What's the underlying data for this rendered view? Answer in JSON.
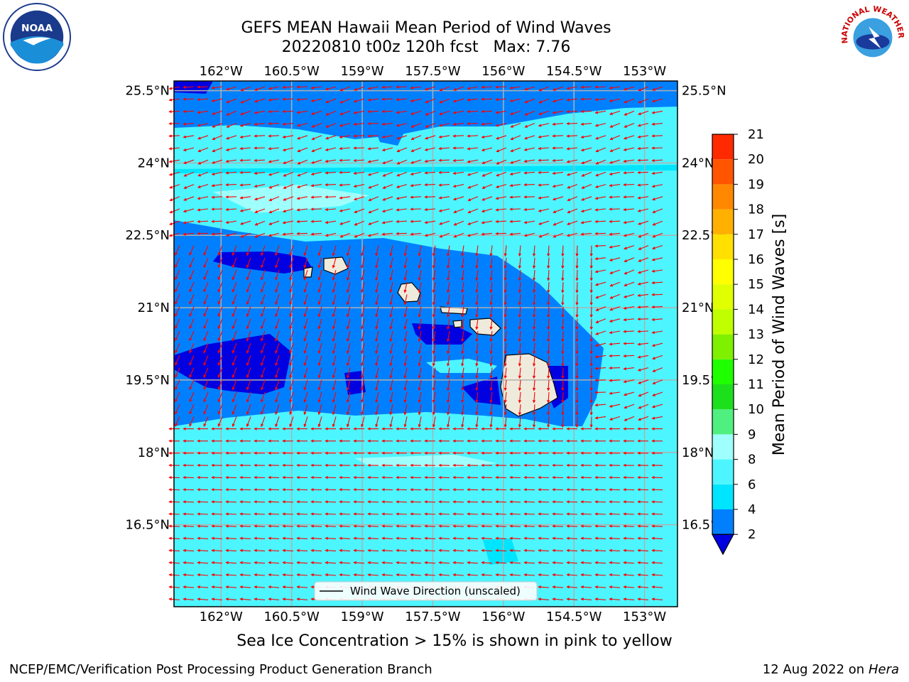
{
  "header": {
    "title_line1": "GEFS MEAN Hawaii Mean Period of Wind Waves",
    "title_line2": "20220810 t00z 120h fcst   Max: 7.76"
  },
  "logos": {
    "left": {
      "icon": "noaa-logo",
      "text": "NOAA"
    },
    "right": {
      "icon": "nws-logo",
      "text": "NATIONAL WEATHER SERVICE"
    }
  },
  "map": {
    "lon_labels": [
      "162°W",
      "160.5°W",
      "159°W",
      "157.5°W",
      "156°W",
      "154.5°W",
      "153°W"
    ],
    "lat_labels_left": [
      "25.5°N",
      "24°N",
      "22.5°N",
      "21°N",
      "19.5°N",
      "18°N",
      "16.5°N"
    ],
    "lat_labels_right": [
      "25.5°N",
      "24°N",
      "22.5°N",
      "21°N",
      "19.5°N",
      "18°N",
      "16.5°N"
    ],
    "extent": {
      "lon_min": -163.0,
      "lon_max": -152.3,
      "lat_min": 14.8,
      "lat_max": 25.7
    },
    "legend_label": "Wind Wave Direction (unscaled)",
    "arrow_color": "#ff0000",
    "land_color": "#efebdc",
    "grid_color": "#b0b0b0"
  },
  "colorbar": {
    "label": "Mean Period of Wind Waves [s]",
    "ticks": [
      "2",
      "4",
      "6",
      "8",
      "9",
      "10",
      "11",
      "12",
      "13",
      "14",
      "15",
      "16",
      "17",
      "18",
      "19",
      "20",
      "21"
    ],
    "colors": [
      "#0080ff",
      "#00e5ff",
      "#4cf5ff",
      "#9ffffc",
      "#50f080",
      "#1de01d",
      "#20ff00",
      "#7ff000",
      "#c0ff00",
      "#e0ff00",
      "#ffff00",
      "#ffe000",
      "#ffb000",
      "#ff8800",
      "#ff5500",
      "#ff2a00"
    ],
    "under_color": "#0000e0",
    "over_color": "#ff0000"
  },
  "caption": "Sea Ice Concentration > 15% is shown in pink to yellow",
  "footer": {
    "left": "NCEP/EMC/Verification Post Processing Product Generation Branch",
    "right_date": "12 Aug 2022 on",
    "right_machine": "Hera"
  }
}
